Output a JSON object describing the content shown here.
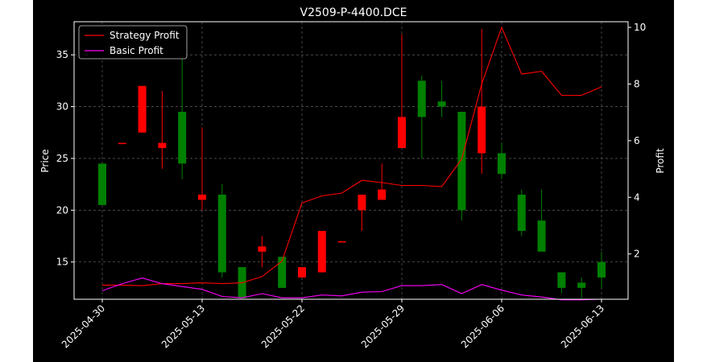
{
  "chart_data": {
    "type": "candlestick",
    "title": "V2509-P-4400.DCE",
    "ylabel_left": "Price",
    "ylabel_right": "Profit",
    "grid": true,
    "legend_placement": "top-left",
    "ylim_left": [
      11.4,
      38.2
    ],
    "ylim_right": [
      0.4,
      10.2
    ],
    "y_ticks_left": [
      15,
      20,
      25,
      30,
      35
    ],
    "y_ticks_right": [
      2,
      4,
      6,
      8,
      10
    ],
    "x_tick_labels": [
      "2025-04-30",
      "2025-05-13",
      "2025-05-22",
      "2025-05-29",
      "2025-06-06",
      "2025-06-13"
    ],
    "x_tick_index": [
      0,
      5,
      10,
      15,
      20,
      25
    ],
    "colors": {
      "up": "#ff0000",
      "down": "#008000",
      "strategy": "#ff0000",
      "basic": "#ff00ff",
      "background": "#000000",
      "grid": "#555555"
    },
    "candles": [
      {
        "open": 24.5,
        "high": 24.5,
        "low": 20.5,
        "close": 20.5
      },
      {
        "open": 26.5,
        "high": 26.5,
        "low": 26.4,
        "close": 26.5
      },
      {
        "open": 27.5,
        "high": 32.0,
        "low": 27.5,
        "close": 32.0
      },
      {
        "open": 26.0,
        "high": 31.5,
        "low": 24.0,
        "close": 26.5
      },
      {
        "open": 29.5,
        "high": 35.0,
        "low": 23.0,
        "close": 24.5
      },
      {
        "open": 21.0,
        "high": 28.0,
        "low": 20.0,
        "close": 21.5
      },
      {
        "open": 21.5,
        "high": 22.5,
        "low": 13.5,
        "close": 14.0
      },
      {
        "open": 14.5,
        "high": 14.5,
        "low": 11.5,
        "close": 11.5
      },
      {
        "open": 16.0,
        "high": 17.5,
        "low": 14.5,
        "close": 16.5
      },
      {
        "open": 15.5,
        "high": 15.5,
        "low": 12.5,
        "close": 12.5
      },
      {
        "open": 13.5,
        "high": 14.5,
        "low": 13.5,
        "close": 14.5
      },
      {
        "open": 14.0,
        "high": 18.0,
        "low": 14.0,
        "close": 18.0
      },
      {
        "open": 17.0,
        "high": 17.0,
        "low": 16.9,
        "close": 17.0
      },
      {
        "open": 20.0,
        "high": 21.5,
        "low": 18.0,
        "close": 21.5
      },
      {
        "open": 21.0,
        "high": 24.5,
        "low": 21.0,
        "close": 22.0
      },
      {
        "open": 26.0,
        "high": 37.0,
        "low": 26.0,
        "close": 29.0
      },
      {
        "open": 32.5,
        "high": 33.0,
        "low": 25.0,
        "close": 29.0
      },
      {
        "open": 30.5,
        "high": 32.5,
        "low": 29.0,
        "close": 30.0
      },
      {
        "open": 29.5,
        "high": 29.5,
        "low": 19.0,
        "close": 20.0
      },
      {
        "open": 25.5,
        "high": 37.5,
        "low": 23.5,
        "close": 30.0
      },
      {
        "open": 25.5,
        "high": 26.5,
        "low": 23.0,
        "close": 23.5
      },
      {
        "open": 21.5,
        "high": 22.0,
        "low": 17.5,
        "close": 18.0
      },
      {
        "open": 19.0,
        "high": 22.0,
        "low": 16.0,
        "close": 16.0
      },
      {
        "open": 14.0,
        "high": 14.0,
        "low": 12.0,
        "close": 12.5
      },
      {
        "open": 13.0,
        "high": 13.5,
        "low": 11.5,
        "close": 12.5
      },
      {
        "open": 15.0,
        "high": 16.0,
        "low": 12.5,
        "close": 13.5
      }
    ],
    "series": [
      {
        "name": "Strategy Profit",
        "axis": "right",
        "values": [
          0.9,
          0.9,
          0.88,
          0.95,
          0.95,
          0.98,
          0.95,
          0.98,
          1.2,
          1.75,
          3.8,
          4.05,
          4.15,
          4.6,
          4.52,
          4.42,
          4.42,
          4.38,
          5.35,
          8.0,
          10.0,
          8.35,
          8.45,
          7.6,
          7.6,
          7.9
        ]
      },
      {
        "name": "Basic Profit",
        "axis": "right",
        "values": [
          0.7,
          0.95,
          1.15,
          0.95,
          0.85,
          0.75,
          0.5,
          0.45,
          0.6,
          0.45,
          0.45,
          0.55,
          0.52,
          0.65,
          0.67,
          0.88,
          0.88,
          0.92,
          0.6,
          0.92,
          0.72,
          0.55,
          0.48,
          0.38,
          0.38,
          0.4
        ]
      }
    ]
  }
}
